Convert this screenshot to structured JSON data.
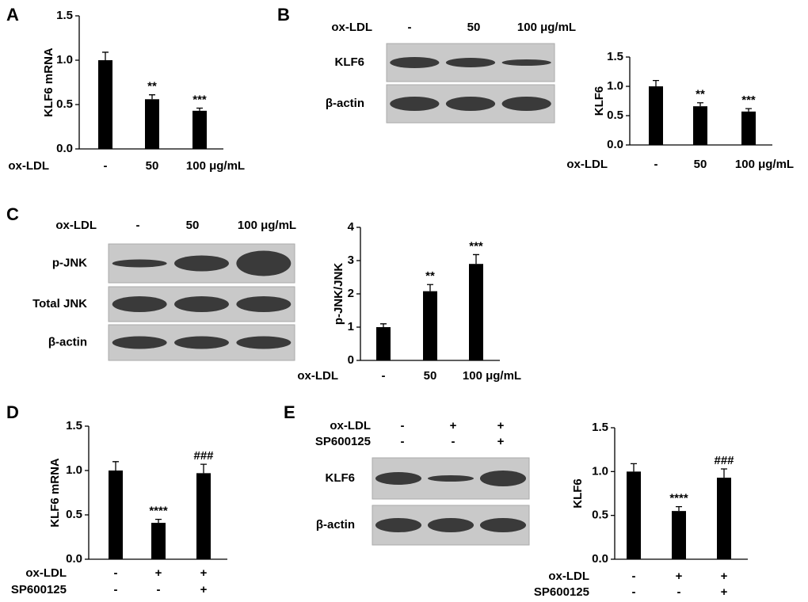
{
  "chart_data": [
    {
      "type": "bar",
      "panel": "A",
      "ylabel": "KLF6  mRNA",
      "color": "#000000",
      "conditions": [
        {
          "name": "ox-LDL",
          "labels": [
            "-",
            "50",
            "100 μg/mL"
          ]
        }
      ],
      "values": [
        1.0,
        0.56,
        0.43
      ],
      "errors": [
        0.09,
        0.05,
        0.03
      ],
      "annotations": [
        null,
        "**",
        "***"
      ],
      "ylim": [
        0,
        1.5
      ],
      "yticks": [
        {
          "value": 0,
          "label": "0.0"
        },
        0.5,
        {
          "value": 1,
          "label": "1.0"
        },
        1.5
      ]
    },
    {
      "type": "bar",
      "ylabel": "KLF6",
      "color": "#000000",
      "conditions": [
        {
          "name": "ox-LDL",
          "labels": [
            "-",
            "50",
            "100 μg/mL"
          ]
        }
      ],
      "values": [
        1.0,
        0.66,
        0.57
      ],
      "errors": [
        0.1,
        0.06,
        0.05
      ],
      "annotations": [
        null,
        "**",
        "***"
      ],
      "ylim": [
        0,
        1.5
      ],
      "yticks": [
        {
          "value": 0,
          "label": "0.0"
        },
        0.5,
        {
          "value": 1,
          "label": "1.0"
        },
        1.5
      ]
    },
    {
      "type": "bar",
      "ylabel": "p-JNK/JNK",
      "color": "#000000",
      "conditions": [
        {
          "name": "ox-LDL",
          "labels": [
            "-",
            "50",
            "100 μg/mL"
          ]
        }
      ],
      "values": [
        1.0,
        2.08,
        2.9
      ],
      "errors": [
        0.1,
        0.2,
        0.28
      ],
      "annotations": [
        null,
        "**",
        "***"
      ],
      "ylim": [
        0,
        4
      ],
      "yticks": [
        0,
        1,
        2,
        3,
        4
      ]
    },
    {
      "type": "bar",
      "panel": "D",
      "ylabel": "KLF6  mRNA",
      "color": "#000000",
      "conditions": [
        {
          "name": "ox-LDL",
          "labels": [
            "-",
            "+",
            "+"
          ]
        },
        {
          "name": "SP600125",
          "labels": [
            "-",
            "-",
            "+"
          ]
        }
      ],
      "values": [
        1.0,
        0.41,
        0.97
      ],
      "errors": [
        0.1,
        0.04,
        0.1
      ],
      "annotations": [
        null,
        "****",
        "###"
      ],
      "ylim": [
        0,
        1.5
      ],
      "yticks": [
        {
          "value": 0,
          "label": "0.0"
        },
        0.5,
        {
          "value": 1,
          "label": "1.0"
        },
        1.5
      ]
    },
    {
      "type": "bar",
      "ylabel": "KLF6",
      "color": "#000000",
      "conditions": [
        {
          "name": "ox-LDL",
          "labels": [
            "-",
            "+",
            "+"
          ]
        },
        {
          "name": "SP600125",
          "labels": [
            "-",
            "-",
            "+"
          ]
        }
      ],
      "values": [
        1.0,
        0.55,
        0.93
      ],
      "errors": [
        0.09,
        0.05,
        0.1
      ],
      "annotations": [
        null,
        "****",
        "###"
      ],
      "ylim": [
        0,
        1.5
      ],
      "yticks": [
        {
          "value": 0,
          "label": "0.0"
        },
        0.5,
        {
          "value": 1,
          "label": "1.0"
        },
        1.5
      ]
    }
  ],
  "blots": [
    {
      "panel": "B",
      "conditions": [
        {
          "name": "ox-LDL",
          "labels": [
            "-",
            "50",
            "100 μg/mL"
          ]
        }
      ],
      "rows": [
        "KLF6",
        "β-actin"
      ]
    },
    {
      "panel": "C",
      "conditions": [
        {
          "name": "ox-LDL",
          "labels": [
            "-",
            "50",
            "100 μg/mL"
          ]
        }
      ],
      "rows": [
        "p-JNK",
        "Total JNK",
        "β-actin"
      ]
    },
    {
      "panel": "E",
      "conditions": [
        {
          "name": "ox-LDL",
          "labels": [
            "-",
            "+",
            "+"
          ]
        },
        {
          "name": "SP600125",
          "labels": [
            "-",
            "-",
            "+"
          ]
        }
      ],
      "rows": [
        "KLF6",
        "β-actin"
      ]
    }
  ]
}
